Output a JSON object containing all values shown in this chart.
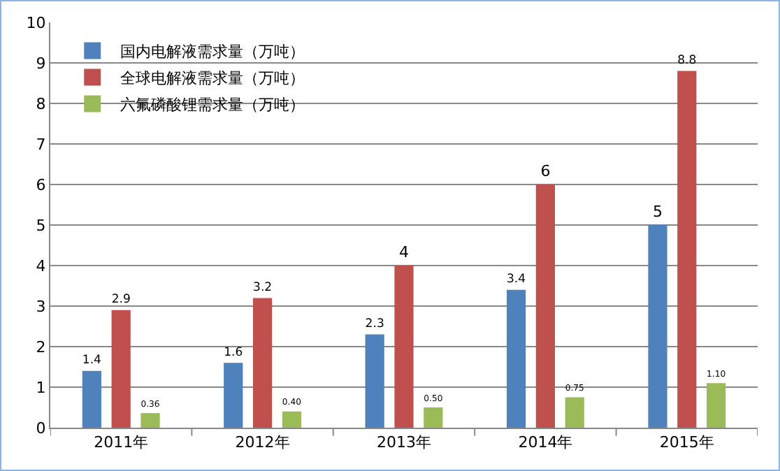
{
  "chart_data": {
    "type": "bar",
    "categories": [
      "2011年",
      "2012年",
      "2013年",
      "2014年",
      "2015年"
    ],
    "series": [
      {
        "name": "国内电解液需求量（万吨）",
        "color": "#4f81bd",
        "values": [
          1.4,
          1.6,
          2.3,
          3.4,
          5
        ],
        "value_labels": [
          "1.4",
          "1.6",
          "2.3",
          "3.4",
          "5"
        ]
      },
      {
        "name": "全球电解液需求量（万吨）",
        "color": "#c0504d",
        "values": [
          2.9,
          3.2,
          4,
          6,
          8.8
        ],
        "value_labels": [
          "2.9",
          "3.2",
          "4",
          "6",
          "8.8"
        ]
      },
      {
        "name": "六氟磷酸锂需求量（万吨）",
        "color": "#9bbb59",
        "values": [
          0.36,
          0.4,
          0.5,
          0.75,
          1.1
        ],
        "value_labels": [
          "0.36",
          "0.40",
          "0.50",
          "0.75",
          "1.10"
        ]
      }
    ],
    "ylim": [
      0,
      10
    ],
    "yticks": [
      0,
      1,
      2,
      3,
      4,
      5,
      6,
      7,
      8,
      9,
      10
    ],
    "grid": "y",
    "legend": "top left"
  }
}
